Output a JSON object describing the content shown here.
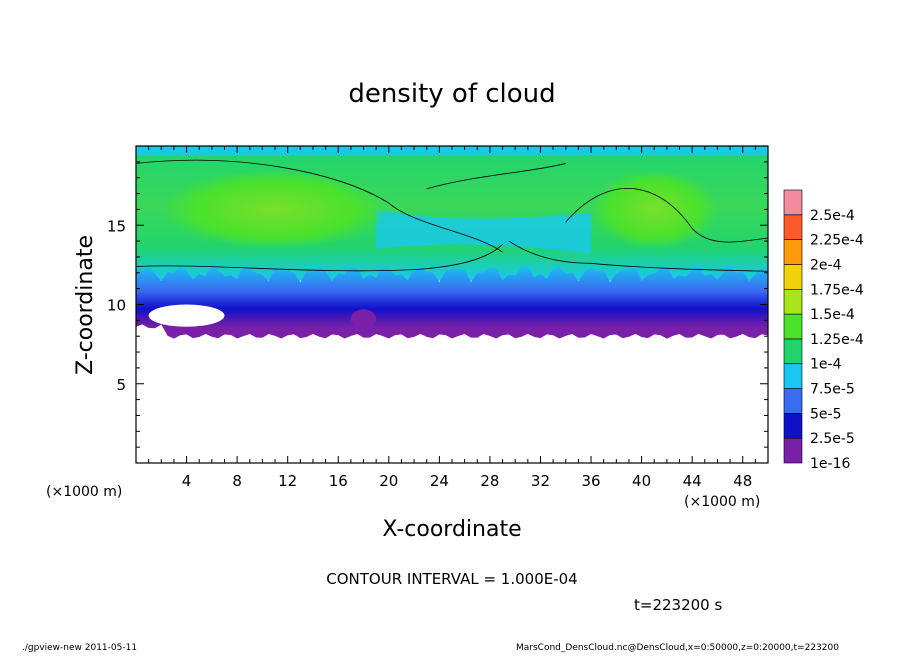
{
  "chart_data": {
    "type": "heatmap",
    "title": "density of cloud",
    "xlabel": "X-coordinate",
    "ylabel": "Z-coordinate",
    "x_unit": "(×1000 m)",
    "z_unit": "(×1000 m)",
    "xlim": [
      0,
      50
    ],
    "zlim": [
      0,
      20
    ],
    "x_ticks": [
      "4",
      "8",
      "12",
      "16",
      "20",
      "24",
      "28",
      "32",
      "36",
      "40",
      "44",
      "48"
    ],
    "z_ticks": [
      "5",
      "10",
      "15"
    ],
    "colorbar": {
      "labels": [
        "1e-16",
        "2.5e-5",
        "5e-5",
        "7.5e-5",
        "1e-4",
        "1.25e-4",
        "1.5e-4",
        "1.75e-4",
        "2e-4",
        "2.25e-4",
        "2.5e-4"
      ],
      "colors": [
        "#7a1fa8",
        "#1010c8",
        "#3a6cf2",
        "#18c8f0",
        "#22d46c",
        "#4be22a",
        "#a8e61a",
        "#f2d20c",
        "#ff9a0a",
        "#ff5a2a",
        "#f28aa0"
      ]
    },
    "cloud_layer": {
      "base_km": 8,
      "dense_layer_top_km": 11,
      "top_km": 19.5,
      "max_density_km_ranges": [
        [
          2,
          20
        ],
        [
          36,
          46
        ]
      ],
      "max_density_value": 0.00015
    },
    "contour_interval": "CONTOUR INTERVAL = 1.000E-04",
    "time_label": "t=223200 s"
  },
  "footer": {
    "left": "./gpview-new   2011-05-11",
    "right": "MarsCond_DensCloud.nc@DensCloud,x=0:50000,z=0:20000,t=223200"
  }
}
